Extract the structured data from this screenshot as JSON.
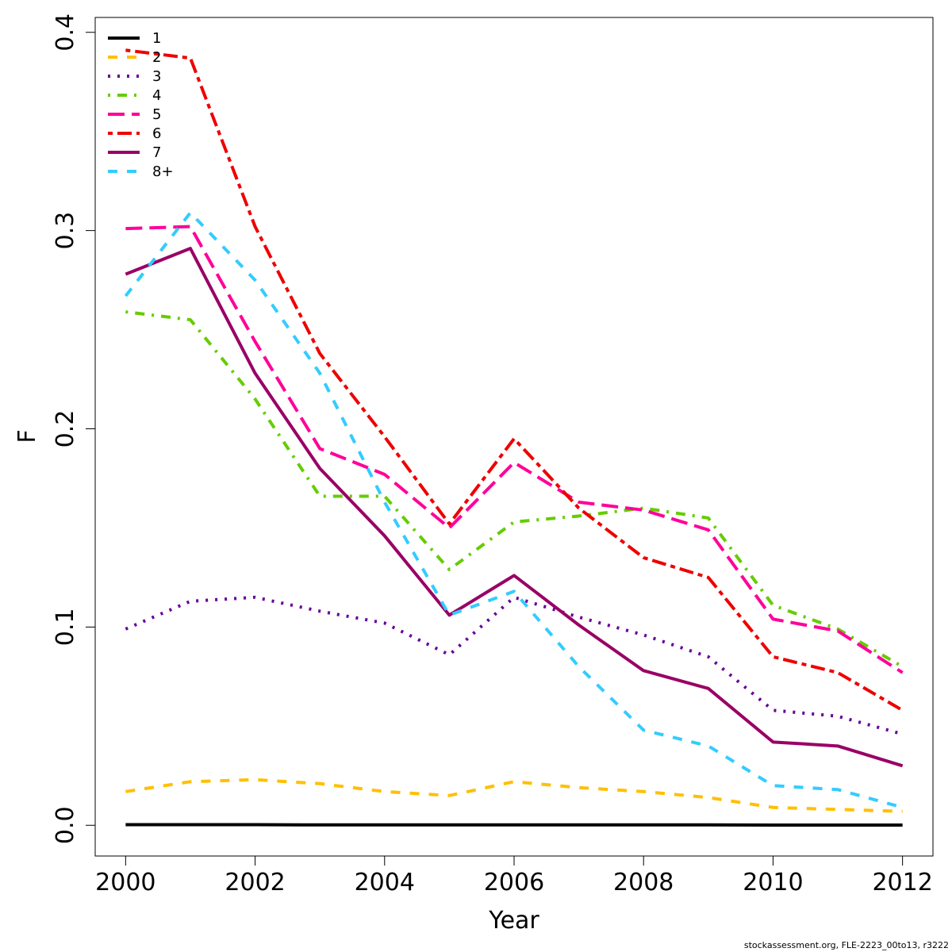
{
  "chart_data": {
    "type": "line",
    "title": "",
    "xlabel": "Year",
    "ylabel": "F",
    "xlim": [
      1999.53,
      2012.47
    ],
    "ylim": [
      -0.0155,
      0.4075
    ],
    "xticks": [
      2000,
      2002,
      2004,
      2006,
      2008,
      2010,
      2012
    ],
    "xtick_labels": [
      "2000",
      "2002",
      "2004",
      "2006",
      "2008",
      "2010",
      "2012"
    ],
    "yticks": [
      0.0,
      0.1,
      0.2,
      0.3,
      0.4
    ],
    "ytick_labels": [
      "0.0",
      "0.1",
      "0.2",
      "0.3",
      "0.4"
    ],
    "grid": false,
    "legend_position": "top-left",
    "x": [
      2000,
      2001,
      2002,
      2003,
      2004,
      2005,
      2006,
      2007,
      2008,
      2009,
      2010,
      2011,
      2012
    ],
    "series": [
      {
        "name": "1",
        "color": "#000000",
        "dash": "solid",
        "values": [
          0.0003,
          0.0003,
          0.0003,
          0.0002,
          0.0002,
          0.0002,
          0.0002,
          0.0002,
          0.0002,
          0.0002,
          0.0001,
          0.0001,
          0.0001
        ]
      },
      {
        "name": "2",
        "color": "#FFC000",
        "dash": "dashed",
        "values": [
          0.017,
          0.022,
          0.023,
          0.021,
          0.017,
          0.015,
          0.022,
          0.019,
          0.017,
          0.014,
          0.009,
          0.008,
          0.007
        ]
      },
      {
        "name": "3",
        "color": "#660099",
        "dash": "dotted",
        "values": [
          0.099,
          0.113,
          0.115,
          0.108,
          0.102,
          0.086,
          0.115,
          0.105,
          0.096,
          0.085,
          0.058,
          0.055,
          0.046
        ]
      },
      {
        "name": "4",
        "color": "#66CC00",
        "dash": "dotdash",
        "values": [
          0.259,
          0.255,
          0.215,
          0.166,
          0.166,
          0.129,
          0.153,
          0.156,
          0.16,
          0.155,
          0.111,
          0.099,
          0.08
        ]
      },
      {
        "name": "5",
        "color": "#FF0099",
        "dash": "longdash",
        "values": [
          0.301,
          0.302,
          0.244,
          0.19,
          0.177,
          0.15,
          0.183,
          0.163,
          0.159,
          0.149,
          0.104,
          0.098,
          0.077
        ]
      },
      {
        "name": "6",
        "color": "#EE0000",
        "dash": "twodash",
        "values": [
          0.391,
          0.387,
          0.302,
          0.238,
          0.196,
          0.152,
          0.195,
          0.16,
          0.135,
          0.125,
          0.085,
          0.077,
          0.058
        ]
      },
      {
        "name": "7",
        "color": "#990066",
        "dash": "solid",
        "values": [
          0.278,
          0.291,
          0.228,
          0.18,
          0.146,
          0.106,
          0.126,
          0.101,
          0.078,
          0.069,
          0.042,
          0.04,
          0.03
        ]
      },
      {
        "name": "8+",
        "color": "#33CCFF",
        "dash": "dashed",
        "values": [
          0.267,
          0.309,
          0.275,
          0.228,
          0.163,
          0.106,
          0.118,
          0.08,
          0.048,
          0.04,
          0.02,
          0.018,
          0.009
        ]
      }
    ]
  },
  "footnote": "stockassessment.org, FLE-2223_00to13, r3222"
}
